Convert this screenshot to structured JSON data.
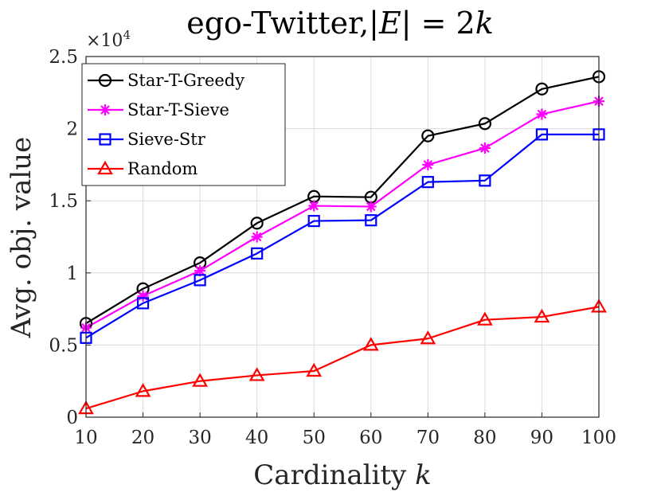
{
  "chart_data": {
    "type": "line",
    "title": "ego-Twitter,|E| = 2k",
    "title_parts": {
      "prefix": "ego-Twitter,|",
      "E": "E",
      "mid": "| = 2",
      "k": "k"
    },
    "xlabel": "Cardinality k",
    "xlabel_parts": {
      "text": "Cardinality ",
      "k": "k"
    },
    "ylabel": "Avg. obj. value",
    "y_multiplier": "×10^4",
    "y_multiplier_parts": {
      "base": "×10",
      "exp": "4"
    },
    "x": [
      10,
      20,
      30,
      40,
      50,
      60,
      70,
      80,
      90,
      100
    ],
    "xlim": [
      10,
      100
    ],
    "ylim": [
      0,
      2.5
    ],
    "xticks": [
      "10",
      "20",
      "30",
      "40",
      "50",
      "60",
      "70",
      "80",
      "90",
      "100"
    ],
    "yticks": [
      {
        "value": 0,
        "label": "0"
      },
      {
        "value": 0.5,
        "label": "0.5"
      },
      {
        "value": 1,
        "label": "1"
      },
      {
        "value": 1.5,
        "label": "1.5"
      },
      {
        "value": 2,
        "label": "2"
      },
      {
        "value": 2.5,
        "label": "2.5"
      }
    ],
    "grid": true,
    "legend_position": "top-left",
    "series": [
      {
        "name": "Star-T-Greedy",
        "color": "#000000",
        "marker": "circle",
        "values": [
          0.65,
          0.89,
          1.07,
          1.345,
          1.53,
          1.525,
          1.95,
          2.035,
          2.275,
          2.36
        ]
      },
      {
        "name": "Star-T-Sieve",
        "color": "#ff00ff",
        "marker": "asterisk",
        "values": [
          0.62,
          0.84,
          1.015,
          1.25,
          1.465,
          1.46,
          1.75,
          1.865,
          2.1,
          2.19
        ]
      },
      {
        "name": "Sieve-Str",
        "color": "#0000ff",
        "marker": "square",
        "values": [
          0.55,
          0.79,
          0.95,
          1.135,
          1.36,
          1.365,
          1.63,
          1.64,
          1.96,
          1.96
        ]
      },
      {
        "name": "Random",
        "color": "#ff0000",
        "marker": "triangle",
        "values": [
          0.06,
          0.18,
          0.25,
          0.29,
          0.32,
          0.5,
          0.545,
          0.675,
          0.695,
          0.765
        ]
      }
    ]
  }
}
